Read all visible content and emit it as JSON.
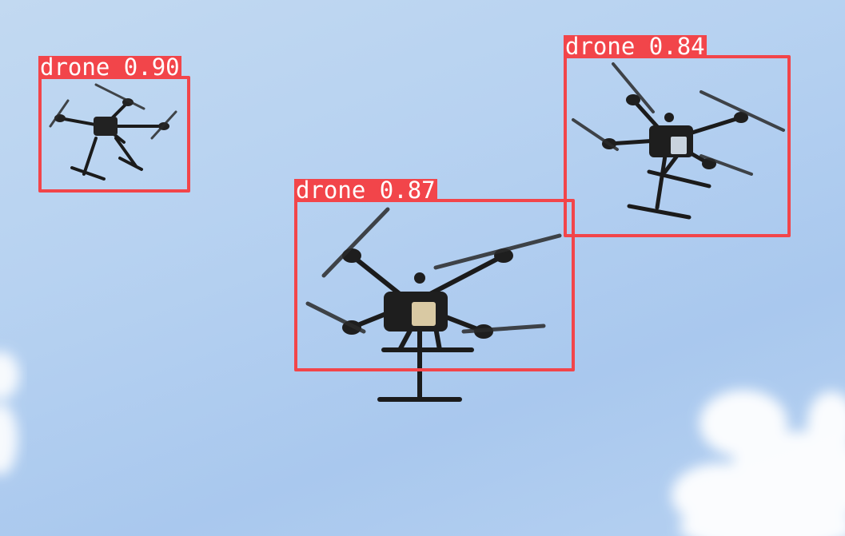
{
  "detections": [
    {
      "label": "drone",
      "score": "0.90"
    },
    {
      "label": "drone",
      "score": "0.87"
    },
    {
      "label": "drone",
      "score": "0.84"
    }
  ],
  "colors": {
    "box": "#f2454a",
    "label_text": "#ffffff",
    "sky": "#b7d2f1"
  }
}
